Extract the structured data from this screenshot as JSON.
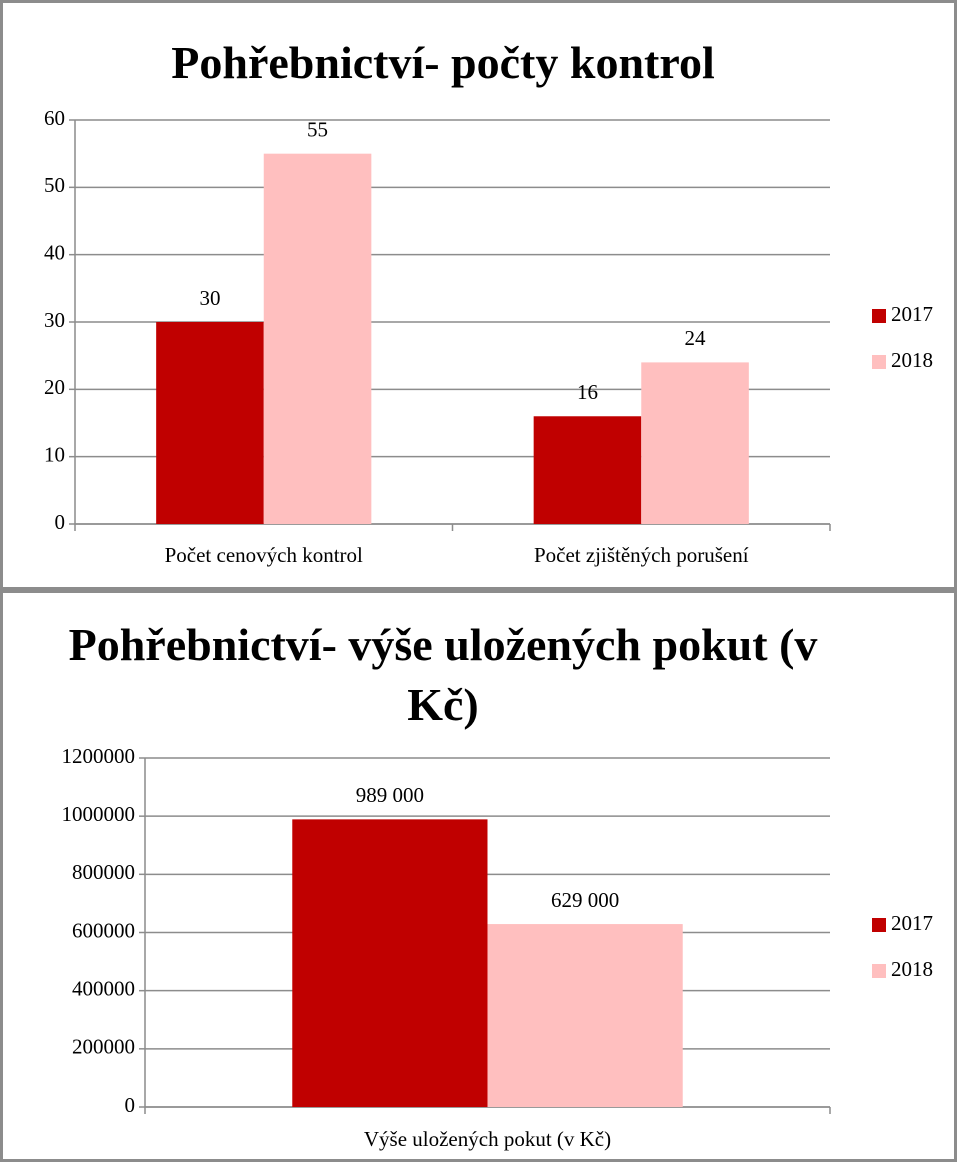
{
  "chart_data": [
    {
      "type": "bar",
      "title": "Pohřebnictví- počty kontrol",
      "categories": [
        "Počet cenových kontrol",
        "Počet zjištěných porušení"
      ],
      "series": [
        {
          "name": "2017",
          "color": "#c00000",
          "values": [
            30,
            16
          ]
        },
        {
          "name": "2018",
          "color": "#ffbfbf",
          "values": [
            55,
            24
          ]
        }
      ],
      "ylim": [
        0,
        60
      ],
      "yticks": [
        0,
        10,
        20,
        30,
        40,
        50,
        60
      ],
      "grid": true,
      "legend": "right"
    },
    {
      "type": "bar",
      "title": "Pohřebnictví- výše uložených pokut (v Kč)",
      "categories": [
        "Výše uložených pokut (v Kč)"
      ],
      "series": [
        {
          "name": "2017",
          "color": "#c00000",
          "values": [
            989000
          ],
          "value_labels": [
            "989 000"
          ]
        },
        {
          "name": "2018",
          "color": "#ffbfbf",
          "values": [
            629000
          ],
          "value_labels": [
            "629 000"
          ]
        }
      ],
      "ylim": [
        0,
        1200000
      ],
      "yticks": [
        0,
        200000,
        400000,
        600000,
        800000,
        1000000,
        1200000
      ],
      "grid": true,
      "legend": "right"
    }
  ]
}
